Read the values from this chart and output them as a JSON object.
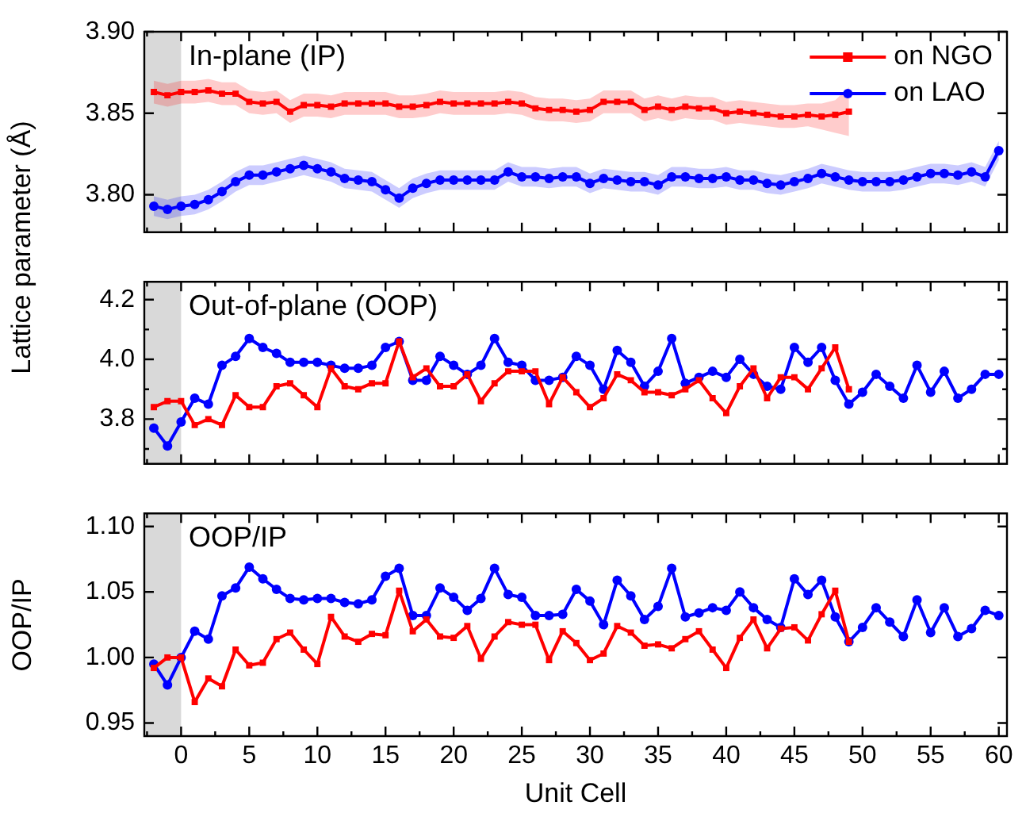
{
  "chart_data": [
    {
      "type": "line",
      "ylabel": "Lattice parameter (Å)",
      "annotations": [
        "In-plane (IP)"
      ],
      "xlim": [
        -2.7,
        60.6
      ],
      "ylim": [
        3.777,
        3.9
      ],
      "xticks": [
        {
          "value": -2.5,
          "label": null
        },
        0,
        {
          "value": 2.5,
          "label": null
        },
        5,
        {
          "value": 7.5,
          "label": null
        },
        10,
        {
          "value": 12.5,
          "label": null
        },
        15,
        {
          "value": 17.5,
          "label": null
        },
        20,
        {
          "value": 22.5,
          "label": null
        },
        25,
        {
          "value": 27.5,
          "label": null
        },
        30,
        {
          "value": 32.5,
          "label": null
        },
        35,
        {
          "value": 37.5,
          "label": null
        },
        40,
        {
          "value": 42.5,
          "label": null
        },
        45,
        {
          "value": 47.5,
          "label": null
        },
        50,
        {
          "value": 52.5,
          "label": null
        },
        55,
        {
          "value": 57.5,
          "label": null
        },
        60
      ],
      "yticks": [
        {
          "value": 3.8,
          "label": "3.80"
        },
        3.85,
        {
          "value": 3.9,
          "label": "3.90"
        }
      ],
      "tick_labels": "y",
      "legend": "top right",
      "bands": [
        {
          "axis": "x",
          "from": -2.7,
          "to": 0,
          "color": "#d9d9d9"
        }
      ],
      "series": [
        {
          "name": "on NGO",
          "color": "#ff0000",
          "marker": "square",
          "x": [
            -2,
            -1,
            0,
            1,
            2,
            3,
            4,
            5,
            6,
            7,
            8,
            9,
            10,
            11,
            12,
            13,
            14,
            15,
            16,
            17,
            18,
            19,
            20,
            21,
            22,
            23,
            24,
            25,
            26,
            27,
            28,
            29,
            30,
            31,
            32,
            33,
            34,
            35,
            36,
            37,
            38,
            39,
            40,
            41,
            42,
            43,
            44,
            45,
            46,
            47,
            48,
            49
          ],
          "values": [
            3.863,
            3.861,
            3.863,
            3.863,
            3.864,
            3.862,
            3.862,
            3.857,
            3.856,
            3.857,
            3.851,
            3.855,
            3.855,
            3.854,
            3.856,
            3.856,
            3.856,
            3.856,
            3.854,
            3.854,
            3.855,
            3.857,
            3.856,
            3.856,
            3.856,
            3.856,
            3.857,
            3.856,
            3.853,
            3.852,
            3.852,
            3.851,
            3.852,
            3.857,
            3.857,
            3.857,
            3.852,
            3.854,
            3.852,
            3.854,
            3.853,
            3.853,
            3.85,
            3.851,
            3.85,
            3.849,
            3.848,
            3.848,
            3.849,
            3.848,
            3.849,
            3.851
          ],
          "lower": [
            3.856,
            3.854,
            3.856,
            3.856,
            3.857,
            3.855,
            3.855,
            3.85,
            3.849,
            3.85,
            3.844,
            3.848,
            3.848,
            3.847,
            3.849,
            3.849,
            3.849,
            3.849,
            3.847,
            3.847,
            3.848,
            3.85,
            3.849,
            3.849,
            3.849,
            3.849,
            3.85,
            3.849,
            3.846,
            3.845,
            3.845,
            3.844,
            3.845,
            3.85,
            3.85,
            3.85,
            3.845,
            3.847,
            3.845,
            3.847,
            3.846,
            3.846,
            3.843,
            3.844,
            3.843,
            3.842,
            3.841,
            3.841,
            3.842,
            3.84,
            3.838,
            3.836
          ],
          "upper": [
            3.87,
            3.868,
            3.87,
            3.87,
            3.871,
            3.869,
            3.869,
            3.864,
            3.863,
            3.864,
            3.858,
            3.862,
            3.862,
            3.861,
            3.863,
            3.863,
            3.863,
            3.863,
            3.861,
            3.861,
            3.862,
            3.864,
            3.863,
            3.863,
            3.863,
            3.863,
            3.864,
            3.863,
            3.86,
            3.859,
            3.859,
            3.858,
            3.859,
            3.864,
            3.864,
            3.864,
            3.859,
            3.861,
            3.859,
            3.861,
            3.86,
            3.86,
            3.857,
            3.858,
            3.857,
            3.856,
            3.855,
            3.855,
            3.856,
            3.856,
            3.858,
            3.866
          ]
        },
        {
          "name": "on LAO",
          "color": "#0000ff",
          "marker": "circle",
          "x": [
            -2,
            -1,
            0,
            1,
            2,
            3,
            4,
            5,
            6,
            7,
            8,
            9,
            10,
            11,
            12,
            13,
            14,
            15,
            16,
            17,
            18,
            19,
            20,
            21,
            22,
            23,
            24,
            25,
            26,
            27,
            28,
            29,
            30,
            31,
            32,
            33,
            34,
            35,
            36,
            37,
            38,
            39,
            40,
            41,
            42,
            43,
            44,
            45,
            46,
            47,
            48,
            49,
            50,
            51,
            52,
            53,
            54,
            55,
            56,
            57,
            58,
            59,
            60
          ],
          "values": [
            3.793,
            3.791,
            3.793,
            3.794,
            3.797,
            3.802,
            3.808,
            3.812,
            3.812,
            3.814,
            3.816,
            3.818,
            3.816,
            3.814,
            3.81,
            3.809,
            3.808,
            3.803,
            3.798,
            3.804,
            3.807,
            3.809,
            3.809,
            3.809,
            3.809,
            3.809,
            3.814,
            3.811,
            3.811,
            3.81,
            3.811,
            3.811,
            3.807,
            3.81,
            3.809,
            3.808,
            3.808,
            3.806,
            3.811,
            3.811,
            3.81,
            3.81,
            3.811,
            3.809,
            3.809,
            3.807,
            3.806,
            3.808,
            3.81,
            3.813,
            3.811,
            3.809,
            3.808,
            3.808,
            3.808,
            3.809,
            3.811,
            3.813,
            3.813,
            3.812,
            3.814,
            3.811,
            3.827
          ],
          "lower": [
            3.787,
            3.785,
            3.787,
            3.788,
            3.791,
            3.796,
            3.802,
            3.806,
            3.806,
            3.808,
            3.81,
            3.812,
            3.81,
            3.808,
            3.804,
            3.803,
            3.802,
            3.797,
            3.792,
            3.798,
            3.801,
            3.803,
            3.803,
            3.803,
            3.803,
            3.803,
            3.808,
            3.805,
            3.805,
            3.804,
            3.805,
            3.805,
            3.801,
            3.804,
            3.803,
            3.802,
            3.802,
            3.8,
            3.805,
            3.805,
            3.804,
            3.804,
            3.805,
            3.803,
            3.803,
            3.801,
            3.8,
            3.802,
            3.804,
            3.807,
            3.805,
            3.803,
            3.802,
            3.802,
            3.802,
            3.803,
            3.805,
            3.807,
            3.807,
            3.806,
            3.808,
            3.805,
            3.821
          ],
          "upper": [
            3.799,
            3.797,
            3.799,
            3.8,
            3.803,
            3.808,
            3.814,
            3.818,
            3.818,
            3.82,
            3.822,
            3.824,
            3.822,
            3.82,
            3.816,
            3.815,
            3.814,
            3.809,
            3.804,
            3.81,
            3.813,
            3.815,
            3.815,
            3.815,
            3.815,
            3.815,
            3.82,
            3.817,
            3.817,
            3.816,
            3.817,
            3.817,
            3.813,
            3.816,
            3.815,
            3.814,
            3.814,
            3.812,
            3.817,
            3.817,
            3.816,
            3.816,
            3.817,
            3.815,
            3.815,
            3.813,
            3.812,
            3.814,
            3.816,
            3.819,
            3.817,
            3.815,
            3.814,
            3.814,
            3.814,
            3.815,
            3.817,
            3.819,
            3.819,
            3.818,
            3.82,
            3.817,
            3.833
          ]
        }
      ]
    },
    {
      "type": "line",
      "annotations": [
        "Out-of-plane (OOP)"
      ],
      "xlim": [
        -2.7,
        60.6
      ],
      "ylim": [
        3.65,
        4.26
      ],
      "xticks": [
        {
          "value": -2.5,
          "label": null
        },
        0,
        {
          "value": 2.5,
          "label": null
        },
        5,
        {
          "value": 7.5,
          "label": null
        },
        10,
        {
          "value": 12.5,
          "label": null
        },
        15,
        {
          "value": 17.5,
          "label": null
        },
        20,
        {
          "value": 22.5,
          "label": null
        },
        25,
        {
          "value": 27.5,
          "label": null
        },
        30,
        {
          "value": 32.5,
          "label": null
        },
        35,
        {
          "value": 37.5,
          "label": null
        },
        40,
        {
          "value": 42.5,
          "label": null
        },
        45,
        {
          "value": 47.5,
          "label": null
        },
        50,
        {
          "value": 52.5,
          "label": null
        },
        55,
        {
          "value": 57.5,
          "label": null
        },
        60
      ],
      "yticks": [
        {
          "value": 3.7,
          "label": null
        },
        3.8,
        {
          "value": 3.9,
          "label": null
        },
        {
          "value": 4.0,
          "label": "4.0"
        },
        {
          "value": 4.1,
          "label": null
        },
        4.2
      ],
      "tick_labels": "y",
      "bands": [
        {
          "axis": "x",
          "from": -2.7,
          "to": 0,
          "color": "#d9d9d9"
        }
      ],
      "series": [
        {
          "color": "#ff0000",
          "marker": "square",
          "x": [
            -2,
            -1,
            0,
            1,
            2,
            3,
            4,
            5,
            6,
            7,
            8,
            9,
            10,
            11,
            12,
            13,
            14,
            15,
            16,
            17,
            18,
            19,
            20,
            21,
            22,
            23,
            24,
            25,
            26,
            27,
            28,
            29,
            30,
            31,
            32,
            33,
            34,
            35,
            36,
            37,
            38,
            39,
            40,
            41,
            42,
            43,
            44,
            45,
            46,
            47,
            48,
            49
          ],
          "values": [
            3.84,
            3.86,
            3.86,
            3.78,
            3.8,
            3.78,
            3.88,
            3.84,
            3.84,
            3.91,
            3.92,
            3.88,
            3.84,
            3.97,
            3.91,
            3.9,
            3.92,
            3.92,
            4.06,
            3.94,
            3.97,
            3.91,
            3.91,
            3.95,
            3.86,
            3.92,
            3.96,
            3.96,
            3.96,
            3.85,
            3.94,
            3.89,
            3.84,
            3.87,
            3.95,
            3.93,
            3.89,
            3.89,
            3.88,
            3.9,
            3.93,
            3.87,
            3.82,
            3.91,
            3.97,
            3.87,
            3.94,
            3.94,
            3.9,
            3.97,
            4.04,
            3.9
          ]
        },
        {
          "color": "#0000ff",
          "marker": "circle",
          "x": [
            -2,
            -1,
            0,
            1,
            2,
            3,
            4,
            5,
            6,
            7,
            8,
            9,
            10,
            11,
            12,
            13,
            14,
            15,
            16,
            17,
            18,
            19,
            20,
            21,
            22,
            23,
            24,
            25,
            26,
            27,
            28,
            29,
            30,
            31,
            32,
            33,
            34,
            35,
            36,
            37,
            38,
            39,
            40,
            41,
            42,
            43,
            44,
            45,
            46,
            47,
            48,
            49,
            50,
            51,
            52,
            53,
            54,
            55,
            56,
            57,
            58,
            59,
            60
          ],
          "values": [
            3.77,
            3.71,
            3.79,
            3.87,
            3.85,
            3.98,
            4.01,
            4.07,
            4.04,
            4.02,
            3.99,
            3.99,
            3.99,
            3.98,
            3.97,
            3.97,
            3.98,
            4.04,
            4.06,
            3.93,
            3.93,
            4.01,
            3.98,
            3.95,
            3.98,
            4.07,
            3.99,
            3.98,
            3.93,
            3.93,
            3.94,
            4.01,
            3.98,
            3.9,
            4.03,
            3.99,
            3.91,
            3.96,
            4.07,
            3.92,
            3.94,
            3.96,
            3.94,
            4.0,
            3.95,
            3.91,
            3.9,
            4.04,
            3.99,
            4.04,
            3.93,
            3.85,
            3.89,
            3.95,
            3.91,
            3.87,
            3.98,
            3.89,
            3.96,
            3.87,
            3.9,
            3.95,
            3.95
          ]
        }
      ]
    },
    {
      "type": "line",
      "xlabel": "Unit Cell",
      "ylabel": "OOP/IP",
      "annotations": [
        "OOP/IP"
      ],
      "xlim": [
        -2.7,
        60.6
      ],
      "ylim": [
        0.94,
        1.11
      ],
      "xticks": [
        {
          "value": -2.5,
          "label": null
        },
        0,
        {
          "value": 2.5,
          "label": null
        },
        5,
        {
          "value": 7.5,
          "label": null
        },
        10,
        {
          "value": 12.5,
          "label": null
        },
        15,
        {
          "value": 17.5,
          "label": null
        },
        20,
        {
          "value": 22.5,
          "label": null
        },
        25,
        {
          "value": 27.5,
          "label": null
        },
        30,
        {
          "value": 32.5,
          "label": null
        },
        35,
        {
          "value": 37.5,
          "label": null
        },
        40,
        {
          "value": 42.5,
          "label": null
        },
        45,
        {
          "value": 47.5,
          "label": null
        },
        50,
        {
          "value": 52.5,
          "label": null
        },
        55,
        {
          "value": 57.5,
          "label": null
        },
        60
      ],
      "yticks": [
        0.95,
        {
          "value": 1.0,
          "label": "1.00"
        },
        1.05,
        {
          "value": 1.1,
          "label": "1.10"
        }
      ],
      "bands": [
        {
          "axis": "x",
          "from": -2.7,
          "to": 0,
          "color": "#d9d9d9"
        }
      ],
      "series": [
        {
          "color": "#ff0000",
          "marker": "square",
          "x": [
            -2,
            -1,
            0,
            1,
            2,
            3,
            4,
            5,
            6,
            7,
            8,
            9,
            10,
            11,
            12,
            13,
            14,
            15,
            16,
            17,
            18,
            19,
            20,
            21,
            22,
            23,
            24,
            25,
            26,
            27,
            28,
            29,
            30,
            31,
            32,
            33,
            34,
            35,
            36,
            37,
            38,
            39,
            40,
            41,
            42,
            43,
            44,
            45,
            46,
            47,
            48,
            49
          ],
          "values": [
            0.992,
            1.0,
            1.0,
            0.966,
            0.984,
            0.978,
            1.006,
            0.994,
            0.996,
            1.014,
            1.019,
            1.006,
            0.995,
            1.031,
            1.016,
            1.012,
            1.018,
            1.017,
            1.051,
            1.02,
            1.029,
            1.016,
            1.015,
            1.024,
            0.999,
            1.016,
            1.027,
            1.025,
            1.025,
            0.998,
            1.02,
            1.011,
            0.998,
            1.003,
            1.024,
            1.019,
            1.009,
            1.01,
            1.007,
            1.014,
            1.02,
            1.006,
            0.992,
            1.015,
            1.029,
            1.007,
            1.022,
            1.023,
            1.013,
            1.033,
            1.051,
            1.012
          ]
        },
        {
          "color": "#0000ff",
          "marker": "circle",
          "x": [
            -2,
            -1,
            0,
            1,
            2,
            3,
            4,
            5,
            6,
            7,
            8,
            9,
            10,
            11,
            12,
            13,
            14,
            15,
            16,
            17,
            18,
            19,
            20,
            21,
            22,
            23,
            24,
            25,
            26,
            27,
            28,
            29,
            30,
            31,
            32,
            33,
            34,
            35,
            36,
            37,
            38,
            39,
            40,
            41,
            42,
            43,
            44,
            45,
            46,
            47,
            48,
            49,
            50,
            51,
            52,
            53,
            54,
            55,
            56,
            57,
            58,
            59,
            60
          ],
          "values": [
            0.995,
            0.979,
            1.0,
            1.02,
            1.014,
            1.047,
            1.053,
            1.069,
            1.06,
            1.052,
            1.045,
            1.044,
            1.045,
            1.045,
            1.042,
            1.041,
            1.044,
            1.062,
            1.068,
            1.032,
            1.032,
            1.053,
            1.046,
            1.036,
            1.045,
            1.068,
            1.048,
            1.046,
            1.032,
            1.032,
            1.033,
            1.052,
            1.043,
            1.025,
            1.059,
            1.047,
            1.029,
            1.039,
            1.068,
            1.031,
            1.034,
            1.038,
            1.036,
            1.05,
            1.038,
            1.029,
            1.023,
            1.06,
            1.048,
            1.059,
            1.031,
            1.012,
            1.023,
            1.038,
            1.027,
            1.016,
            1.044,
            1.019,
            1.038,
            1.016,
            1.022,
            1.036,
            1.032
          ]
        }
      ]
    }
  ]
}
